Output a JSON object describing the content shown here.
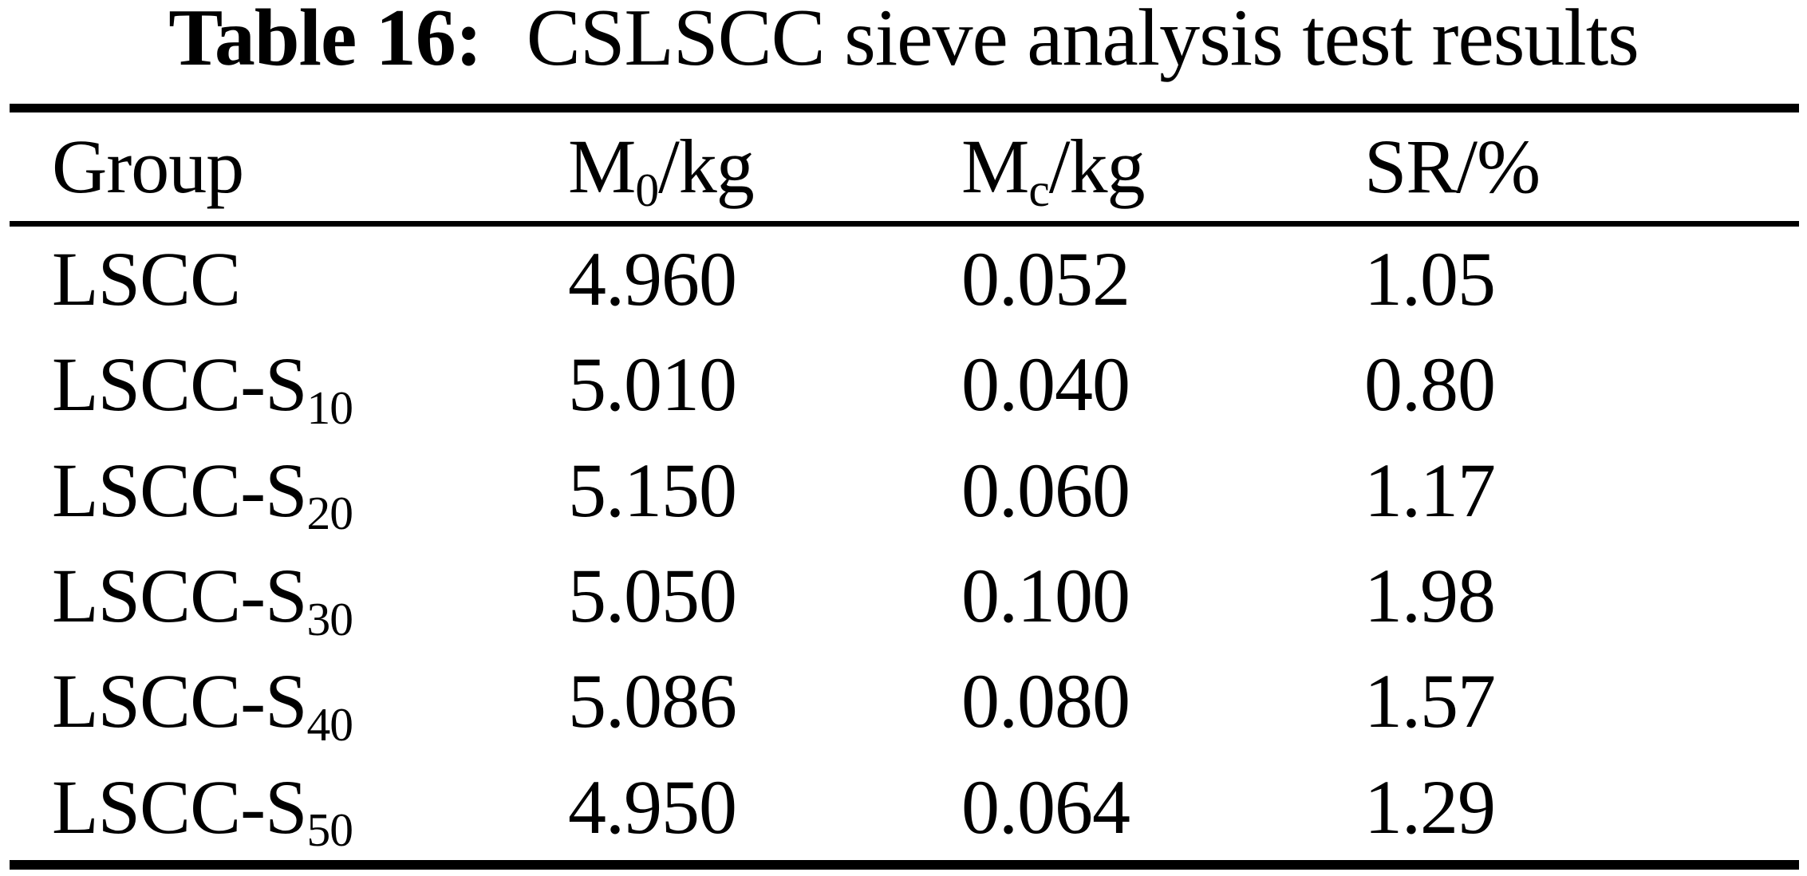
{
  "title": {
    "label": "Table 16:",
    "text": "CSLSCC sieve analysis test results"
  },
  "table": {
    "header": {
      "group": "Group",
      "m0": {
        "pre": "M",
        "sub": "0",
        "post": "/kg"
      },
      "mc": {
        "pre": "M",
        "sub": "c",
        "post": "/kg"
      },
      "sr": "SR/%"
    },
    "rows": [
      {
        "group": {
          "pre": "LSCC",
          "sub": ""
        },
        "m0": "4.960",
        "mc": "0.052",
        "sr": "1.05"
      },
      {
        "group": {
          "pre": "LSCC-S",
          "sub": "10"
        },
        "m0": "5.010",
        "mc": "0.040",
        "sr": "0.80"
      },
      {
        "group": {
          "pre": "LSCC-S",
          "sub": "20"
        },
        "m0": "5.150",
        "mc": "0.060",
        "sr": "1.17"
      },
      {
        "group": {
          "pre": "LSCC-S",
          "sub": "30"
        },
        "m0": "5.050",
        "mc": "0.100",
        "sr": "1.98"
      },
      {
        "group": {
          "pre": "LSCC-S",
          "sub": "40"
        },
        "m0": "5.086",
        "mc": "0.080",
        "sr": "1.57"
      },
      {
        "group": {
          "pre": "LSCC-S",
          "sub": "50"
        },
        "m0": "4.950",
        "mc": "0.064",
        "sr": "1.29"
      }
    ]
  },
  "colors": {
    "background": "#ffffff",
    "text": "#000000",
    "rule": "#000000"
  },
  "chart_data": {
    "type": "table",
    "title": "Table 16: CSLSCC sieve analysis test results",
    "columns": [
      "Group",
      "M0/kg",
      "Mc/kg",
      "SR/%"
    ],
    "rows": [
      [
        "LSCC",
        4.96,
        0.052,
        1.05
      ],
      [
        "LSCC-S10",
        5.01,
        0.04,
        0.8
      ],
      [
        "LSCC-S20",
        5.15,
        0.06,
        1.17
      ],
      [
        "LSCC-S30",
        5.05,
        0.1,
        1.98
      ],
      [
        "LSCC-S40",
        5.086,
        0.08,
        1.57
      ],
      [
        "LSCC-S50",
        4.95,
        0.064,
        1.29
      ]
    ]
  }
}
